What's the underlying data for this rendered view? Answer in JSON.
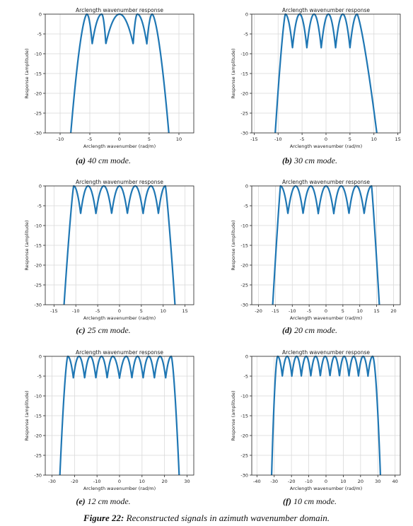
{
  "figure": {
    "label": "Figure 22:",
    "caption": "Reconstructed signals in azimuth wavenumber domain."
  },
  "style": {
    "line_color": "#1f77b4",
    "grid_color": "#d9d9d9"
  },
  "chart_data": [
    {
      "type": "line",
      "panel_label": "(a)",
      "caption": "40 cm mode.",
      "title": "Arclength wavenumber response",
      "xlabel": "Arclength wavenumber (rad/m)",
      "ylabel": "Response (amplitude)",
      "xlim": [
        -12.5,
        12.5
      ],
      "ylim": [
        -30,
        0
      ],
      "xticks": [
        -10,
        -5,
        0,
        5,
        10
      ],
      "yticks": [
        0,
        -5,
        -10,
        -15,
        -20,
        -25,
        -30
      ],
      "grid": true,
      "edges": [
        -8.2,
        8.3
      ],
      "rise": 1.6,
      "dip_depth": 7.5,
      "peaks": [
        -5.5,
        -3.0,
        0,
        3.0,
        5.5
      ],
      "dips": [
        -4.6,
        -2.3,
        2.3,
        4.6
      ]
    },
    {
      "type": "line",
      "panel_label": "(b)",
      "caption": "30 cm mode.",
      "title": "Arclength wavenumber response",
      "xlabel": "Arclength wavenumber (rad/m)",
      "ylabel": "Response (amplitude)",
      "xlim": [
        -15.5,
        15.5
      ],
      "ylim": [
        -30,
        0
      ],
      "xticks": [
        -15,
        -10,
        -5,
        0,
        5,
        10,
        15
      ],
      "yticks": [
        0,
        -5,
        -10,
        -15,
        -20,
        -25,
        -30
      ],
      "grid": true,
      "edges": [
        -10.6,
        10.6
      ],
      "rise": 1.3,
      "dip_depth": 8.5,
      "peaks": [
        -8.5,
        -5.5,
        -2.5,
        0.5,
        3.5,
        6.5
      ],
      "dips": [
        -7.0,
        -4.0,
        -1.0,
        2.0,
        5.0,
        7.8
      ]
    },
    {
      "type": "line",
      "panel_label": "(c)",
      "caption": "25 cm mode.",
      "title": "Arclength wavenumber response",
      "xlabel": "Arclength wavenumber (rad/m)",
      "ylabel": "Response (amplitude)",
      "xlim": [
        -17,
        17
      ],
      "ylim": [
        -30,
        0
      ],
      "xticks": [
        -15,
        -10,
        -5,
        0,
        5,
        10,
        15
      ],
      "yticks": [
        0,
        -5,
        -10,
        -15,
        -20,
        -25,
        -30
      ],
      "grid": true,
      "edges": [
        -12.7,
        12.7
      ],
      "rise": 1.2,
      "dip_depth": 7,
      "peaks": [
        -10.5,
        -7.2,
        -3.6,
        0,
        3.6,
        7.2,
        10.5
      ],
      "dips": [
        -8.9,
        -5.4,
        -1.8,
        1.8,
        5.4,
        8.9
      ]
    },
    {
      "type": "line",
      "panel_label": "(d)",
      "caption": "20 cm mode.",
      "title": "Arclength wavenumber response",
      "xlabel": "Arclength wavenumber (rad/m)",
      "ylabel": "Response (amplitude)",
      "xlim": [
        -22,
        22
      ],
      "ylim": [
        -30,
        0
      ],
      "xticks": [
        -20,
        -15,
        -10,
        -5,
        0,
        5,
        10,
        15,
        20
      ],
      "yticks": [
        0,
        -5,
        -10,
        -15,
        -20,
        -25,
        -30
      ],
      "grid": true,
      "edges": [
        -15.8,
        15.8
      ],
      "rise": 1.1,
      "dip_depth": 7,
      "peaks": [
        -13.5,
        -9.0,
        -4.5,
        0,
        4.5,
        9.0,
        13.5
      ],
      "dips": [
        -11.3,
        -6.8,
        -2.3,
        2.3,
        6.8,
        11.3
      ]
    },
    {
      "type": "line",
      "panel_label": "(e)",
      "caption": "12 cm mode.",
      "title": "Arclength wavenumber response",
      "xlabel": "Arclength wavenumber (rad/m)",
      "ylabel": "Response (amplitude)",
      "xlim": [
        -33,
        33
      ],
      "ylim": [
        -30,
        0
      ],
      "xticks": [
        -30,
        -20,
        -10,
        0,
        10,
        20,
        30
      ],
      "yticks": [
        0,
        -5,
        -10,
        -15,
        -20,
        -25,
        -30
      ],
      "grid": true,
      "edges": [
        -26.5,
        26.5
      ],
      "rise": 1.5,
      "dip_depth": 5.5,
      "peaks": [
        -23,
        -18,
        -13,
        -8,
        -3,
        3,
        8,
        13,
        18,
        23
      ],
      "dips": [
        -20.5,
        -15.5,
        -10.5,
        -5.5,
        0,
        5.5,
        10.5,
        15.5,
        20.5
      ]
    },
    {
      "type": "line",
      "panel_label": "(f)",
      "caption": "10 cm mode.",
      "title": "Arclength wavenumber response",
      "xlabel": "Arclength wavenumber (rad/m)",
      "ylabel": "Response (amplitude)",
      "xlim": [
        -43,
        43
      ],
      "ylim": [
        -30,
        0
      ],
      "xticks": [
        -40,
        -30,
        -20,
        -10,
        0,
        10,
        20,
        30,
        40
      ],
      "yticks": [
        0,
        -5,
        -10,
        -15,
        -20,
        -25,
        -30
      ],
      "grid": true,
      "edges": [
        -31.5,
        31.5
      ],
      "rise": 1.8,
      "dip_depth": 5,
      "peaks": [
        -28,
        -22.5,
        -17,
        -11.5,
        -6,
        -0.5,
        5,
        10.5,
        16,
        21.5,
        27
      ],
      "dips": [
        -25.3,
        -19.8,
        -14.3,
        -8.8,
        -3.3,
        2.3,
        7.8,
        13.3,
        18.8,
        24.3
      ]
    }
  ]
}
